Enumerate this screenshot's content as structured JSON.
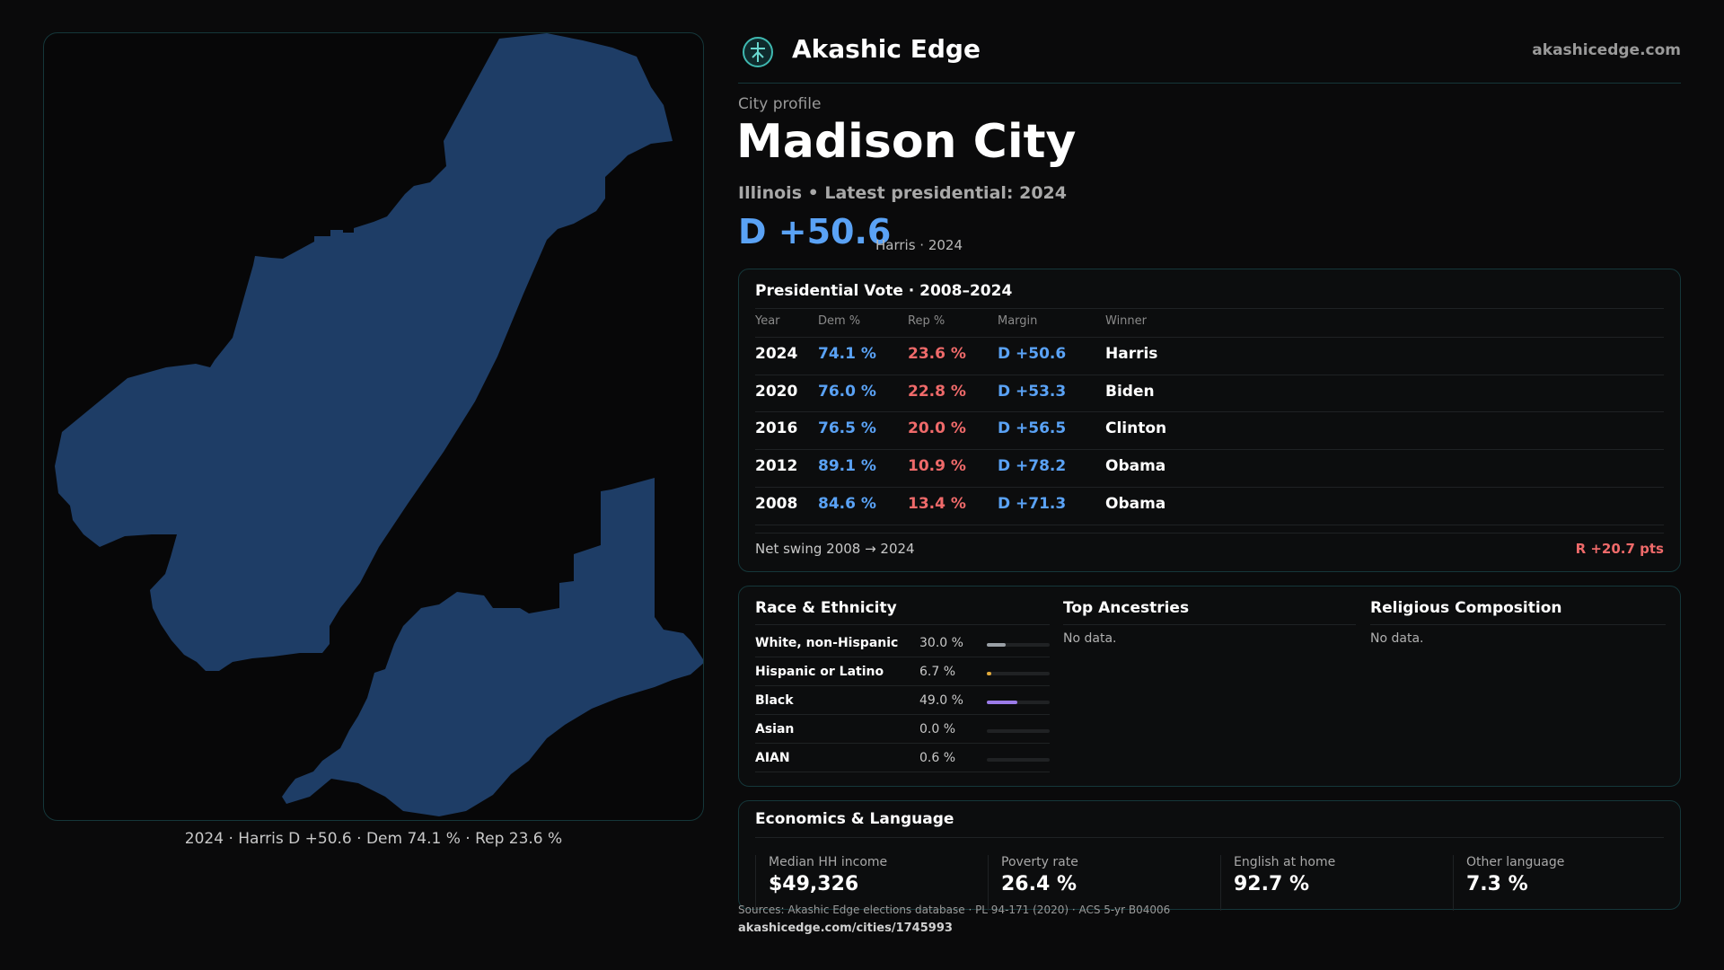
{
  "brand": {
    "name": "Akashic Edge",
    "url": "akashicedge.com"
  },
  "map": {
    "caption": "2024 · Harris D +50.6 · Dem 74.1 % · Rep 23.6 %",
    "fill": "#1e3d66"
  },
  "profile": {
    "kicker": "City profile",
    "city": "Madison City",
    "subtitle": "Illinois • Latest presidential: 2024",
    "margin": "D +50.6",
    "margin_note": "Harris · 2024"
  },
  "vote": {
    "title": "Presidential Vote · 2008–2024",
    "headers": {
      "year": "Year",
      "dem": "Dem %",
      "rep": "Rep %",
      "margin": "Margin",
      "winner": "Winner"
    },
    "rows": [
      {
        "year": "2024",
        "dem": "74.1 %",
        "rep": "23.6 %",
        "margin": "D +50.6",
        "winner": "Harris"
      },
      {
        "year": "2020",
        "dem": "76.0 %",
        "rep": "22.8 %",
        "margin": "D +53.3",
        "winner": "Biden"
      },
      {
        "year": "2016",
        "dem": "76.5 %",
        "rep": "20.0 %",
        "margin": "D +56.5",
        "winner": "Clinton"
      },
      {
        "year": "2012",
        "dem": "89.1 %",
        "rep": "10.9 %",
        "margin": "D +78.2",
        "winner": "Obama"
      },
      {
        "year": "2008",
        "dem": "84.6 %",
        "rep": "13.4 %",
        "margin": "D +71.3",
        "winner": "Obama"
      }
    ],
    "swing_label": "Net swing 2008 → 2024",
    "swing_value": "R +20.7 pts"
  },
  "race": {
    "title": "Race & Ethnicity",
    "items": [
      {
        "label": "White, non-Hispanic",
        "value": "30.0 %",
        "fraction": 0.3,
        "color": "#9aa0a6"
      },
      {
        "label": "Hispanic or Latino",
        "value": "6.7 %",
        "fraction": 0.067,
        "color": "#e0a83a"
      },
      {
        "label": "Black",
        "value": "49.0 %",
        "fraction": 0.49,
        "color": "#9b7be8"
      },
      {
        "label": "Asian",
        "value": "0.0 %",
        "fraction": 0.0,
        "color": "#5aa2f5"
      },
      {
        "label": "AIAN",
        "value": "0.6 %",
        "fraction": 0.006,
        "color": "#5aa2f5"
      }
    ]
  },
  "ancestries": {
    "title": "Top Ancestries",
    "empty": "No data."
  },
  "religion": {
    "title": "Religious Composition",
    "empty": "No data."
  },
  "econ": {
    "title": "Economics & Language",
    "items": [
      {
        "label": "Median HH income",
        "value": "$49,326"
      },
      {
        "label": "Poverty rate",
        "value": "26.4 %"
      },
      {
        "label": "English at home",
        "value": "92.7 %"
      },
      {
        "label": "Other language",
        "value": "7.3 %"
      }
    ]
  },
  "footer": {
    "sources": "Sources: Akashic Edge elections database · PL 94-171 (2020) · ACS 5-yr B04006",
    "url": "akashicedge.com/cities/1745993"
  }
}
